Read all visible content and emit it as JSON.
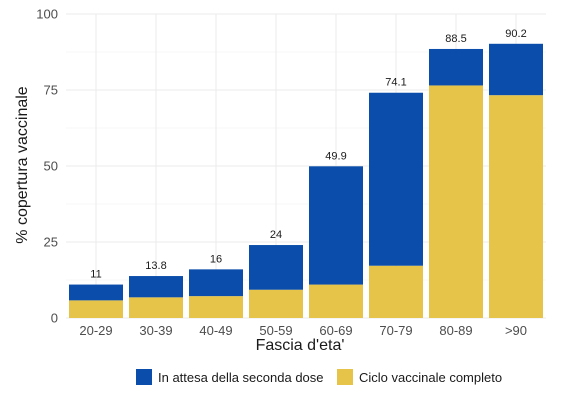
{
  "chart_data": {
    "type": "bar",
    "stacked": true,
    "categories": [
      "20-29",
      "30-39",
      "40-49",
      "50-59",
      "60-69",
      "70-79",
      "80-89",
      ">90"
    ],
    "series": [
      {
        "name": "Ciclo vaccinale completo",
        "color": "#E6C44A",
        "values": [
          5.8,
          6.8,
          7.2,
          9.3,
          11.0,
          17.2,
          76.5,
          73.3
        ]
      },
      {
        "name": "In attesa della seconda dose",
        "color": "#0A4DAA",
        "values": [
          5.2,
          7.0,
          8.8,
          14.7,
          38.9,
          56.9,
          12.0,
          16.9
        ]
      }
    ],
    "totals": [
      "11",
      "13.8",
      "16",
      "24",
      "49.9",
      "74.1",
      "88.5",
      "90.2"
    ],
    "title": "",
    "xlabel": "Fascia d'eta'",
    "ylabel": "% copertura vaccinale",
    "ylim": [
      0,
      100
    ],
    "yticks": [
      "0",
      "25",
      "50",
      "75",
      "100"
    ],
    "grid": true,
    "legend_position": "bottom",
    "legend_order": [
      "In attesa della seconda dose",
      "Ciclo vaccinale completo"
    ]
  }
}
